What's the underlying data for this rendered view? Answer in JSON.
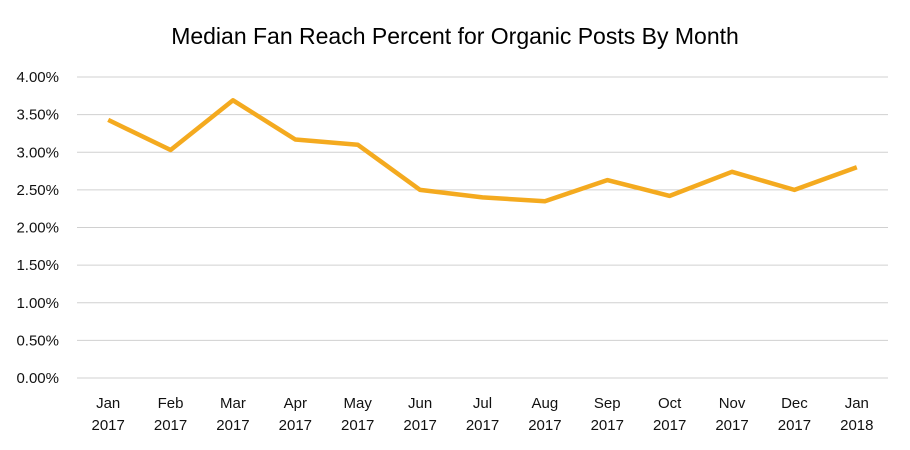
{
  "chart_data": {
    "type": "line",
    "title": "Median Fan Reach Percent for Organic Posts By Month",
    "xlabel": "",
    "ylabel": "",
    "categories": [
      [
        "Jan",
        "2017"
      ],
      [
        "Feb",
        "2017"
      ],
      [
        "Mar",
        "2017"
      ],
      [
        "Apr",
        "2017"
      ],
      [
        "May",
        "2017"
      ],
      [
        "Jun",
        "2017"
      ],
      [
        "Jul",
        "2017"
      ],
      [
        "Aug",
        "2017"
      ],
      [
        "Sep",
        "2017"
      ],
      [
        "Oct",
        "2017"
      ],
      [
        "Nov",
        "2017"
      ],
      [
        "Dec",
        "2017"
      ],
      [
        "Jan",
        "2018"
      ]
    ],
    "series": [
      {
        "name": "Median Fan Reach Percent",
        "color": "#F4AA1F",
        "values": [
          3.43,
          3.03,
          3.69,
          3.17,
          3.1,
          2.5,
          2.4,
          2.35,
          2.63,
          2.42,
          2.74,
          2.5,
          2.8
        ]
      }
    ],
    "ylim": [
      0,
      4
    ],
    "yticks": [
      0,
      0.5,
      1,
      1.5,
      2,
      2.5,
      3,
      3.5,
      4
    ],
    "ytick_labels": [
      "0.00%",
      "0.50%",
      "1.00%",
      "1.50%",
      "2.00%",
      "2.50%",
      "3.00%",
      "3.50%",
      "4.00%"
    ],
    "grid": true,
    "legend": "none"
  }
}
